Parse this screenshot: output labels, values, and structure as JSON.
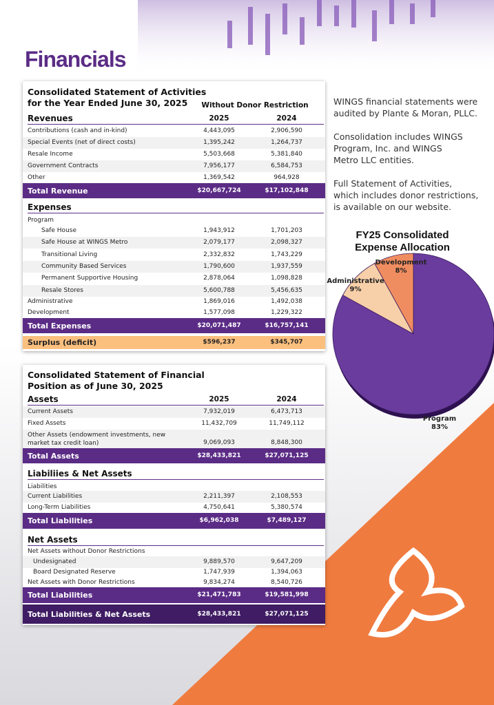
{
  "header": {
    "title": "Financials"
  },
  "activities": {
    "title": [
      "Consolidated Statement of Activities",
      "for the Year Ended June 30, 2025"
    ],
    "column_group": "Without Donor Restriction",
    "columns": [
      "2025",
      "2024"
    ],
    "revenues": {
      "heading": "Revenues",
      "rows": [
        [
          "Contributions (cash and in-kind)",
          "4,443,095",
          "2,906,590"
        ],
        [
          "Special Events (net of direct costs)",
          "1,395,242",
          "1,264,737"
        ],
        [
          "Resale Income",
          "5,503,668",
          "5,381,840"
        ],
        [
          "Government Contracts",
          "7,956,177",
          "6,584,753"
        ],
        [
          "Other",
          "1,369,542",
          "964,928"
        ]
      ],
      "total": [
        "Total Revenue",
        "$20,667,724",
        "$17,102,848"
      ]
    },
    "expenses": {
      "heading": "Expenses",
      "group": "Program",
      "program_rows": [
        [
          "Safe House",
          "1,943,912",
          "1,701,203"
        ],
        [
          "Safe House at WINGS Metro",
          "2,079,177",
          "2,098,327"
        ],
        [
          "Transitional Living",
          "2,332,832",
          "1,743,229"
        ],
        [
          "Community Based Services",
          "1,790,600",
          "1,937,559"
        ],
        [
          "Permanent Supportive Housing",
          "2,878,064",
          "1,098,828"
        ],
        [
          "Resale Stores",
          "5,600,788",
          "5,456,635"
        ]
      ],
      "rows": [
        [
          "Administrative",
          "1,869,016",
          "1,492,038"
        ],
        [
          "Development",
          "1,577,098",
          "1,229,322"
        ]
      ],
      "total": [
        "Total Expenses",
        "$20,071,487",
        "$16,757,141"
      ]
    },
    "surplus": [
      "Surplus (deficit)",
      "$596,237",
      "$345,707"
    ]
  },
  "position": {
    "title": [
      "Consolidated Statement of Financial",
      "Position as of June 30, 2025"
    ],
    "columns": [
      "2025",
      "2024"
    ],
    "assets": {
      "heading": "Assets",
      "rows": [
        [
          "Current Assets",
          "7,932,019",
          "6,473,713"
        ],
        [
          "Fixed Assets",
          "11,432,709",
          "11,749,112"
        ],
        [
          "Other Assets (endowment investments, new market tax credit loan)",
          "9,069,093",
          "8,848,300"
        ]
      ],
      "total": [
        "Total Assets",
        "$28,433,821",
        "$27,071,125"
      ]
    },
    "liabilities": {
      "heading": "Liabiliies & Net Assets",
      "group": "Liabilities",
      "rows": [
        [
          "Current Liabilities",
          "2,211,397",
          "2,108,553"
        ],
        [
          "Long-Term Liabilities",
          "4,750,641",
          "5,380,574"
        ]
      ],
      "total": [
        "Total Liabilities",
        "$6,962,038",
        "$7,489,127"
      ]
    },
    "net_assets": {
      "heading": "Net Assets",
      "group": "Net Assets without Donor Restrictions",
      "sub_rows": [
        [
          "Undesignated",
          "9,889,570",
          "9,647,209"
        ],
        [
          "Board Designated Reserve",
          "1,747,939",
          "1,394,063"
        ]
      ],
      "rows": [
        [
          "Net Assets with Donor Restrictions",
          "9,834,274",
          "8,540,726"
        ]
      ],
      "total": [
        "Total Liabilities",
        "$21,471,783",
        "$19,581,998"
      ],
      "grand_total": [
        "Total Liabilities & Net Assets",
        "$28,433,821",
        "$27,071,125"
      ]
    }
  },
  "notes": [
    [
      "WINGS financial statements were",
      "audited by Plante & Moran, PLLC."
    ],
    [
      "Consolidation includes WINGS",
      "Program, Inc. and WINGS",
      "Metro LLC entities."
    ],
    [
      "Full Statement of Activities,",
      "which includes donor restrictions,",
      "is available on our website."
    ]
  ],
  "chart_data": {
    "type": "pie",
    "title": [
      "FY25 Consolidated",
      "Expense Allocation"
    ],
    "categories": [
      "Program",
      "Administrative",
      "Development"
    ],
    "values": [
      83,
      9,
      8
    ],
    "value_labels": [
      "83%",
      "9%",
      "8%"
    ],
    "colors": [
      "#6a3c9e",
      "#f7cfa8",
      "#f08d60"
    ]
  }
}
